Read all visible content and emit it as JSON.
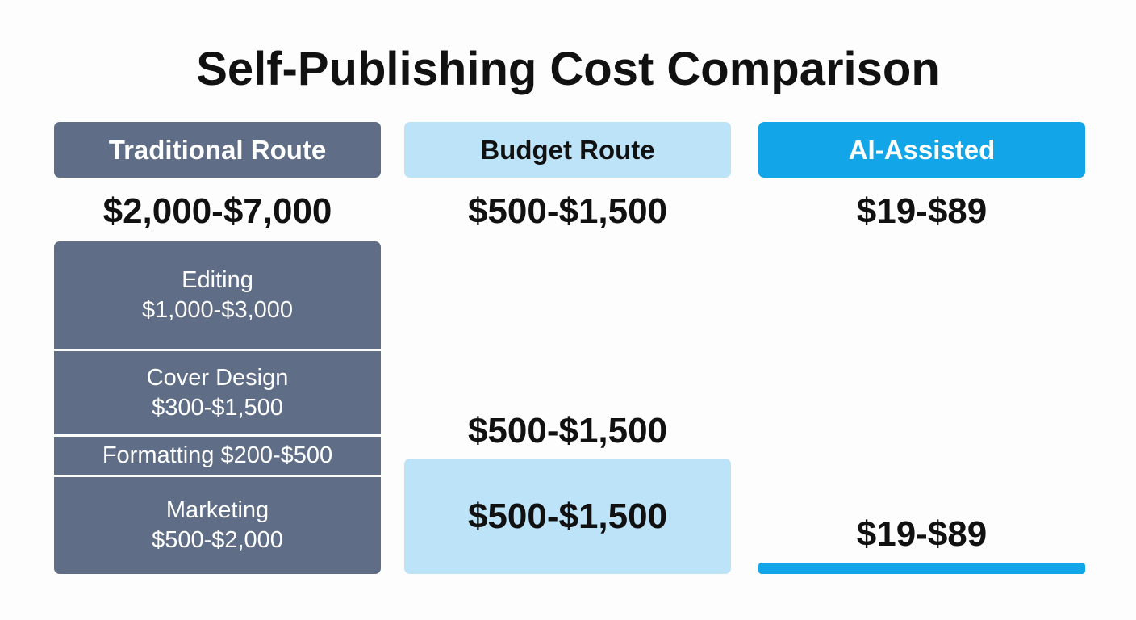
{
  "header": {
    "title": "Self-Publishing Cost Comparison"
  },
  "columns": [
    {
      "name": "Traditional Route",
      "total": "$2,000-$7,000",
      "segments": [
        {
          "label": "Editing",
          "cost": "$1,000-$3,000"
        },
        {
          "label": "Cover Design",
          "cost": "$300-$1,500"
        },
        {
          "label": "Formatting $200-$500"
        },
        {
          "label": "Marketing",
          "cost": "$500-$2,000"
        }
      ]
    },
    {
      "name": "Budget Route",
      "total": "$500-$1,500",
      "bar_caption": "$500-$1,500",
      "bar_label": "$500-$1,500"
    },
    {
      "name": "AI-Assisted",
      "total": "$19-$89",
      "bar_caption": "$19-$89"
    }
  ]
}
